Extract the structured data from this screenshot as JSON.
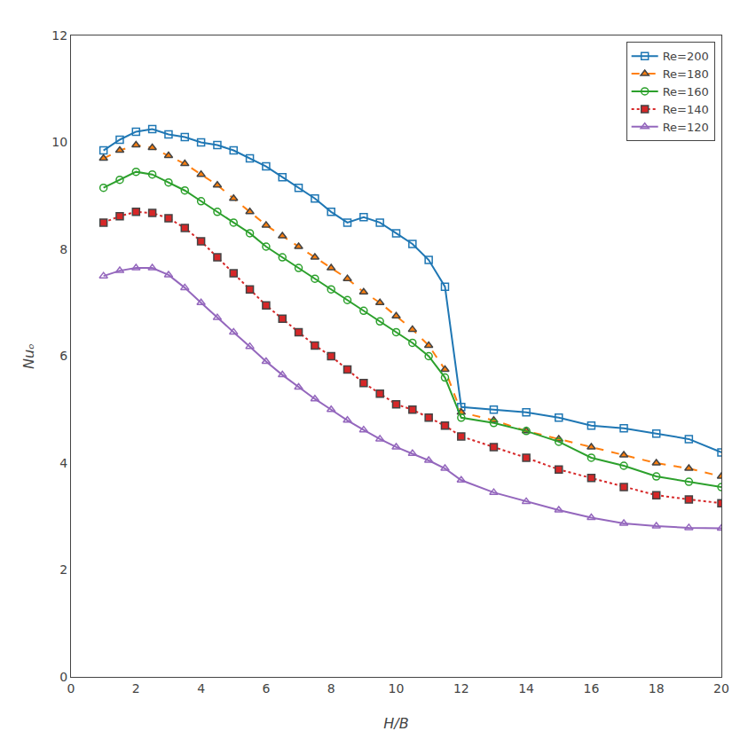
{
  "chart_data": {
    "type": "line",
    "xlabel": "H/B",
    "ylabel": "Nuₒ",
    "xlim": [
      0,
      20
    ],
    "ylim": [
      0,
      12
    ],
    "xticks": [
      0,
      2,
      4,
      6,
      8,
      10,
      12,
      14,
      16,
      18,
      20
    ],
    "yticks": [
      0,
      2,
      4,
      6,
      8,
      10,
      12
    ],
    "grid": false,
    "legend": "upper right",
    "x": [
      1,
      1.5,
      2,
      2.5,
      3,
      3.5,
      4,
      4.5,
      5,
      5.5,
      6,
      6.5,
      7,
      7.5,
      8,
      8.5,
      9,
      9.5,
      10,
      10.5,
      11,
      11.5,
      12,
      13,
      14,
      15,
      16,
      17,
      18,
      19,
      20
    ],
    "series": [
      {
        "name": "Re=200",
        "line_style": "solid",
        "marker": "square-open",
        "values": [
          9.85,
          10.05,
          10.2,
          10.25,
          10.15,
          10.1,
          10.0,
          9.95,
          9.85,
          9.7,
          9.55,
          9.35,
          9.15,
          8.95,
          8.7,
          8.5,
          8.6,
          8.5,
          8.3,
          8.1,
          7.8,
          7.3,
          5.05,
          5.0,
          4.95,
          4.85,
          4.7,
          4.65,
          4.55,
          4.45,
          4.2
        ]
      },
      {
        "name": "Re=180",
        "line_style": "dash",
        "marker": "triangle-up",
        "values": [
          9.7,
          9.85,
          9.95,
          9.9,
          9.75,
          9.6,
          9.4,
          9.2,
          8.95,
          8.7,
          8.45,
          8.25,
          8.05,
          7.85,
          7.65,
          7.45,
          7.2,
          7.0,
          6.75,
          6.5,
          6.2,
          5.75,
          4.95,
          4.8,
          4.6,
          4.45,
          4.3,
          4.15,
          4.0,
          3.9,
          3.75
        ]
      },
      {
        "name": "Re=160",
        "line_style": "solid",
        "marker": "circle-open",
        "values": [
          9.15,
          9.3,
          9.45,
          9.4,
          9.25,
          9.1,
          8.9,
          8.7,
          8.5,
          8.3,
          8.05,
          7.85,
          7.65,
          7.45,
          7.25,
          7.05,
          6.85,
          6.65,
          6.45,
          6.25,
          6.0,
          5.6,
          4.85,
          4.75,
          4.6,
          4.4,
          4.1,
          3.95,
          3.75,
          3.65,
          3.55
        ]
      },
      {
        "name": "Re=140",
        "line_style": "dot",
        "marker": "square",
        "values": [
          8.5,
          8.62,
          8.7,
          8.68,
          8.58,
          8.4,
          8.15,
          7.85,
          7.55,
          7.25,
          6.95,
          6.7,
          6.45,
          6.2,
          6.0,
          5.75,
          5.5,
          5.3,
          5.1,
          5.0,
          4.85,
          4.7,
          4.5,
          4.3,
          4.1,
          3.88,
          3.72,
          3.55,
          3.4,
          3.32,
          3.25
        ]
      },
      {
        "name": "Re=120",
        "line_style": "solid",
        "marker": "triangle-up-open",
        "values": [
          7.5,
          7.6,
          7.65,
          7.65,
          7.52,
          7.28,
          7.0,
          6.72,
          6.45,
          6.18,
          5.9,
          5.65,
          5.42,
          5.2,
          5.0,
          4.8,
          4.62,
          4.45,
          4.3,
          4.18,
          4.05,
          3.9,
          3.68,
          3.45,
          3.28,
          3.12,
          2.98,
          2.87,
          2.82,
          2.79,
          2.78
        ]
      }
    ]
  }
}
